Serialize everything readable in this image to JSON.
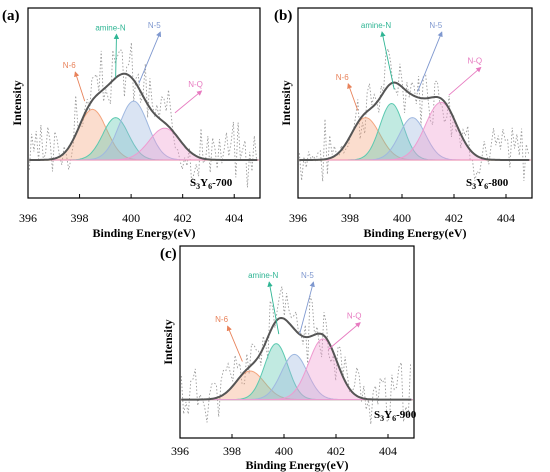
{
  "chart_data": [
    {
      "panel_label": "(a)",
      "type": "area",
      "xlabel": "Binding Energy(eV)",
      "ylabel": "Intensity",
      "xlim": [
        396,
        405
      ],
      "xticks": [
        "396",
        "398",
        "400",
        "402",
        "404"
      ],
      "xtick_values": [
        396,
        398,
        400,
        402,
        404
      ],
      "sample_label": "S3Y6-700",
      "noise_seed": 3,
      "series": [
        {
          "name": "N-6",
          "center": 398.5,
          "height": 0.43,
          "width": 0.55,
          "color": "#f4a57e"
        },
        {
          "name": "amine-N",
          "center": 399.4,
          "height": 0.36,
          "width": 0.5,
          "color": "#5cc9b0"
        },
        {
          "name": "N-5",
          "center": 400.1,
          "height": 0.5,
          "width": 0.55,
          "color": "#9fb8e0"
        },
        {
          "name": "N-Q",
          "center": 401.3,
          "height": 0.27,
          "width": 0.6,
          "color": "#ef9ad0"
        }
      ],
      "annotations": [
        {
          "text": "N-6",
          "x": 397.6,
          "y": 0.78,
          "ax": 398.2,
          "ay": 0.5,
          "color": "#e8825a"
        },
        {
          "text": "amine-N",
          "x": 399.2,
          "y": 1.1,
          "ax": 399.4,
          "ay": 0.7,
          "color": "#2fb594"
        },
        {
          "text": "N-5",
          "x": 400.9,
          "y": 1.12,
          "ax": 400.3,
          "ay": 0.65,
          "color": "#7f98cf"
        },
        {
          "text": "N-Q",
          "x": 402.5,
          "y": 0.62,
          "ax": 401.7,
          "ay": 0.4,
          "color": "#e77ac0"
        }
      ]
    },
    {
      "panel_label": "(b)",
      "type": "area",
      "xlabel": "Binding Energy(eV)",
      "ylabel": "Intensity",
      "xlim": [
        396,
        405
      ],
      "xticks": [
        "396",
        "398",
        "400",
        "402",
        "404"
      ],
      "xtick_values": [
        396,
        398,
        400,
        402,
        404
      ],
      "sample_label": "S3Y6-800",
      "noise_seed": 7,
      "series": [
        {
          "name": "N-6",
          "center": 398.6,
          "height": 0.36,
          "width": 0.55,
          "color": "#f4a57e"
        },
        {
          "name": "amine-N",
          "center": 399.6,
          "height": 0.48,
          "width": 0.45,
          "color": "#5cc9b0"
        },
        {
          "name": "N-5",
          "center": 400.4,
          "height": 0.36,
          "width": 0.5,
          "color": "#9fb8e0"
        },
        {
          "name": "N-Q",
          "center": 401.5,
          "height": 0.49,
          "width": 0.6,
          "color": "#ef9ad0"
        }
      ],
      "annotations": [
        {
          "text": "N-6",
          "x": 397.7,
          "y": 0.68,
          "ax": 398.3,
          "ay": 0.42,
          "color": "#e8825a"
        },
        {
          "text": "amine-N",
          "x": 399.0,
          "y": 1.12,
          "ax": 399.7,
          "ay": 0.6,
          "color": "#2fb594"
        },
        {
          "text": "N-5",
          "x": 401.3,
          "y": 1.12,
          "ax": 400.6,
          "ay": 0.58,
          "color": "#7f98cf"
        },
        {
          "text": "N-Q",
          "x": 402.8,
          "y": 0.82,
          "ax": 401.8,
          "ay": 0.55,
          "color": "#e77ac0"
        }
      ]
    },
    {
      "panel_label": "(c)",
      "type": "area",
      "xlabel": "Binding Energy(eV)",
      "ylabel": "Intensity",
      "xlim": [
        396,
        405
      ],
      "xticks": [
        "396",
        "398",
        "400",
        "402",
        "404"
      ],
      "xtick_values": [
        396,
        398,
        400,
        402,
        404
      ],
      "sample_label": "S3Y6-900",
      "noise_seed": 11,
      "series": [
        {
          "name": "N-6",
          "center": 398.7,
          "height": 0.24,
          "width": 0.55,
          "color": "#f4a57e"
        },
        {
          "name": "amine-N",
          "center": 399.7,
          "height": 0.47,
          "width": 0.45,
          "color": "#5cc9b0"
        },
        {
          "name": "N-5",
          "center": 400.4,
          "height": 0.38,
          "width": 0.5,
          "color": "#9fb8e0"
        },
        {
          "name": "N-Q",
          "center": 401.5,
          "height": 0.51,
          "width": 0.55,
          "color": "#ef9ad0"
        }
      ],
      "annotations": [
        {
          "text": "N-6",
          "x": 397.6,
          "y": 0.65,
          "ax": 398.4,
          "ay": 0.32,
          "color": "#e8825a"
        },
        {
          "text": "amine-N",
          "x": 399.2,
          "y": 1.02,
          "ax": 399.8,
          "ay": 0.55,
          "color": "#2fb594"
        },
        {
          "text": "N-5",
          "x": 400.9,
          "y": 1.02,
          "ax": 400.6,
          "ay": 0.55,
          "color": "#7f98cf"
        },
        {
          "text": "N-Q",
          "x": 402.7,
          "y": 0.68,
          "ax": 401.7,
          "ay": 0.42,
          "color": "#e77ac0"
        }
      ]
    }
  ]
}
